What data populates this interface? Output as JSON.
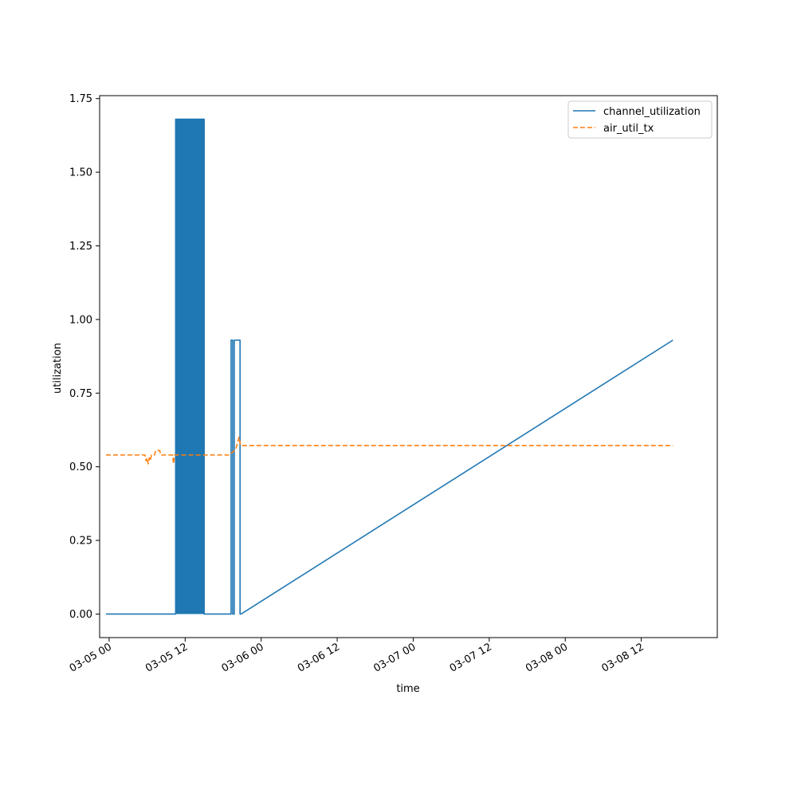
{
  "chart_data": {
    "type": "line",
    "title": "",
    "xlabel": "time",
    "ylabel": "utilization",
    "x_axis_type": "datetime",
    "xlim": [
      "2025-03-04T22:30",
      "2025-03-09T00:00"
    ],
    "ylim": [
      -0.08,
      1.76
    ],
    "x_ticks": [
      {
        "label": "03-05 00",
        "value": "2025-03-05T00:00"
      },
      {
        "label": "03-05 12",
        "value": "2025-03-05T12:00"
      },
      {
        "label": "03-06 00",
        "value": "2025-03-06T00:00"
      },
      {
        "label": "03-06 12",
        "value": "2025-03-06T12:00"
      },
      {
        "label": "03-07 00",
        "value": "2025-03-07T00:00"
      },
      {
        "label": "03-07 12",
        "value": "2025-03-07T12:00"
      },
      {
        "label": "03-08 00",
        "value": "2025-03-08T00:00"
      },
      {
        "label": "03-08 12",
        "value": "2025-03-08T12:00"
      }
    ],
    "y_ticks": [
      {
        "label": "0.00",
        "value": 0.0
      },
      {
        "label": "0.25",
        "value": 0.25
      },
      {
        "label": "0.50",
        "value": 0.5
      },
      {
        "label": "0.75",
        "value": 0.75
      },
      {
        "label": "1.00",
        "value": 1.0
      },
      {
        "label": "1.25",
        "value": 1.25
      },
      {
        "label": "1.50",
        "value": 1.5
      },
      {
        "label": "1.75",
        "value": 1.75
      }
    ],
    "grid": false,
    "legend_position": "top-right",
    "series": [
      {
        "name": "channel_utilization",
        "color": "#1f77b4",
        "style": "solid",
        "points": [
          [
            "2025-03-04T23:30",
            0.0
          ],
          [
            "2025-03-05T10:30",
            0.0
          ],
          [
            "2025-03-05T10:30",
            1.68
          ],
          [
            "2025-03-05T15:00",
            1.68
          ],
          [
            "2025-03-05T15:00",
            0.0
          ],
          [
            "2025-03-05T19:15",
            0.0
          ],
          [
            "2025-03-05T19:15",
            0.93
          ],
          [
            "2025-03-05T19:30",
            0.93
          ],
          [
            "2025-03-05T19:30",
            0.0
          ],
          [
            "2025-03-05T19:45",
            0.0
          ],
          [
            "2025-03-05T19:45",
            0.93
          ],
          [
            "2025-03-05T20:40",
            0.93
          ],
          [
            "2025-03-05T20:40",
            0.0
          ],
          [
            "2025-03-05T20:50",
            0.0
          ],
          [
            "2025-03-08T17:00",
            0.93
          ]
        ],
        "dense_bands": [
          {
            "x_start": "2025-03-05T10:30",
            "x_end": "2025-03-05T15:00",
            "y_min": 0.0,
            "y_max": 1.68
          }
        ]
      },
      {
        "name": "air_util_tx",
        "color": "#ff7f0e",
        "style": "dashed",
        "points": [
          [
            "2025-03-04T23:30",
            0.54
          ],
          [
            "2025-03-05T05:40",
            0.54
          ],
          [
            "2025-03-05T05:50",
            0.52
          ],
          [
            "2025-03-05T06:00",
            0.53
          ],
          [
            "2025-03-05T06:10",
            0.51
          ],
          [
            "2025-03-05T06:20",
            0.53
          ],
          [
            "2025-03-05T06:30",
            0.52
          ],
          [
            "2025-03-05T06:40",
            0.54
          ],
          [
            "2025-03-05T07:10",
            0.54
          ],
          [
            "2025-03-05T07:20",
            0.555
          ],
          [
            "2025-03-05T08:00",
            0.555
          ],
          [
            "2025-03-05T08:10",
            0.54
          ],
          [
            "2025-03-05T10:00",
            0.54
          ],
          [
            "2025-03-05T10:10",
            0.51
          ],
          [
            "2025-03-05T10:20",
            0.54
          ],
          [
            "2025-03-05T19:00",
            0.54
          ],
          [
            "2025-03-05T19:30",
            0.55
          ],
          [
            "2025-03-05T20:00",
            0.56
          ],
          [
            "2025-03-05T20:30",
            0.6
          ],
          [
            "2025-03-05T20:45",
            0.572
          ],
          [
            "2025-03-08T17:00",
            0.572
          ]
        ]
      }
    ]
  }
}
